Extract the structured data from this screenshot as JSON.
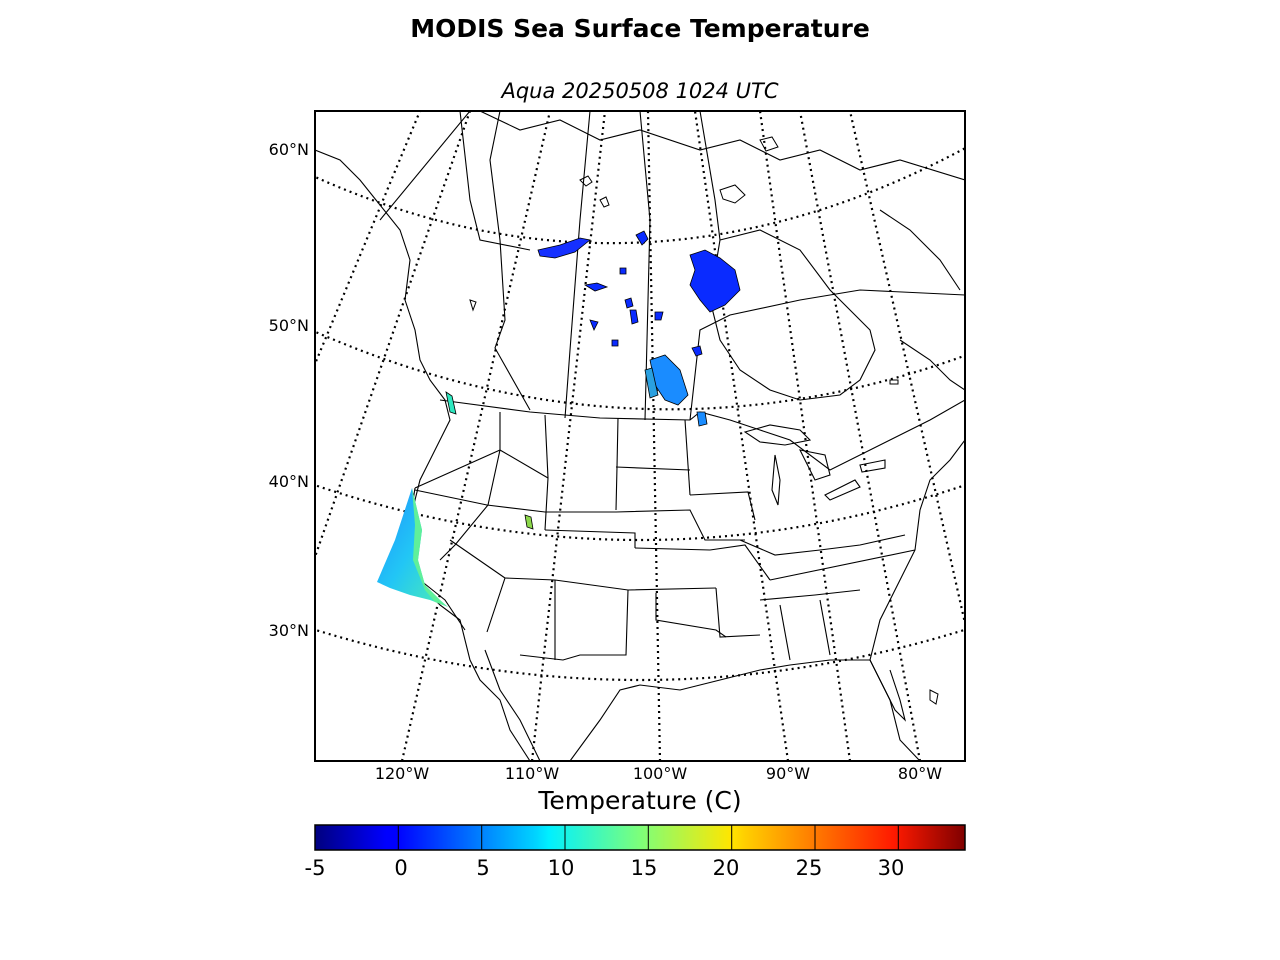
{
  "title": "MODIS Sea Surface Temperature",
  "subtitle": "Aqua 20250508 1024 UTC",
  "latitude_labels": [
    "60°N",
    "50°N",
    "40°N",
    "30°N"
  ],
  "longitude_labels": [
    "120°W",
    "110°W",
    "100°W",
    "90°W",
    "80°W"
  ],
  "colorbar": {
    "label": "Temperature (C)",
    "colormap": "jet",
    "range": [
      -5,
      34
    ],
    "ticks": [
      "-5",
      "0",
      "5",
      "10",
      "15",
      "20",
      "25",
      "30"
    ]
  },
  "colors": {
    "land_fill": "#ffffff",
    "coastline": "#000000",
    "graticule": "#000000"
  }
}
